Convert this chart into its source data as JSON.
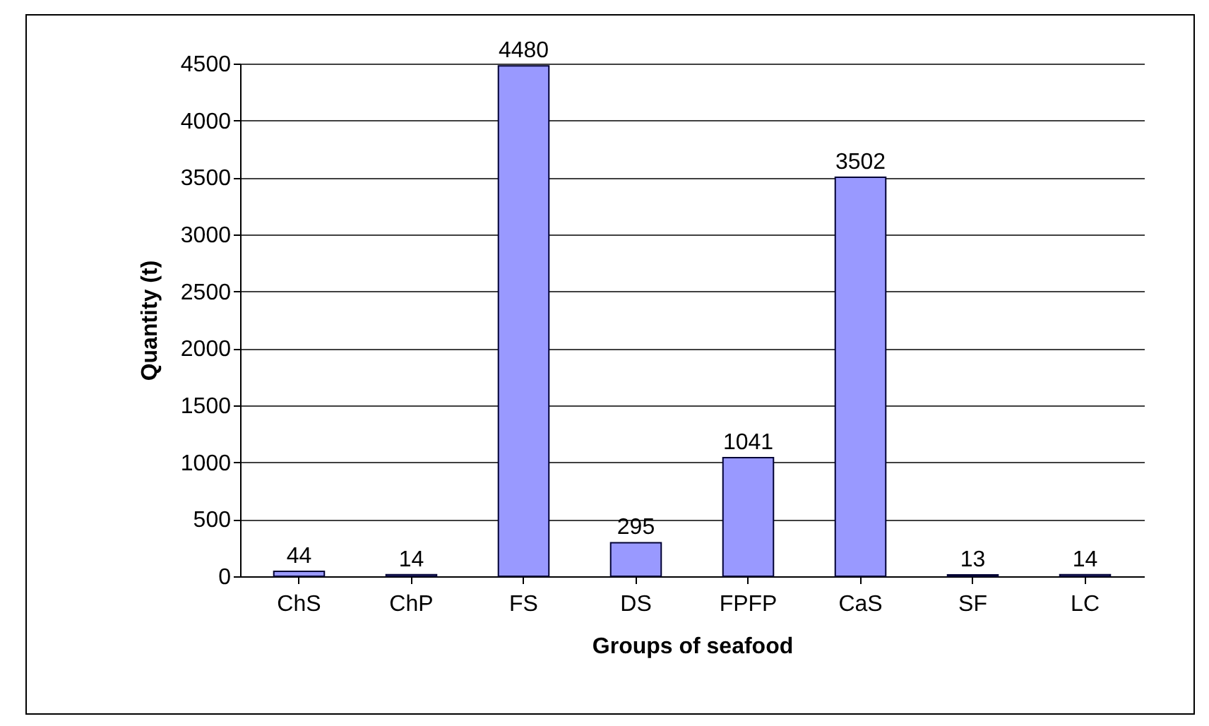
{
  "chart_data": {
    "type": "bar",
    "xlabel": "Groups of seafood",
    "ylabel": "Quantity (t)",
    "categories": [
      "ChS",
      "ChP",
      "FS",
      "DS",
      "FPFP",
      "CaS",
      "SF",
      "LC"
    ],
    "values": [
      44,
      14,
      4480,
      295,
      1041,
      3502,
      13,
      14
    ],
    "color": "#9999ff",
    "ylim": [
      0,
      4500
    ],
    "yticks": [
      0,
      500,
      1000,
      1500,
      2000,
      2500,
      3000,
      3500,
      4000,
      4500
    ],
    "grid": "y",
    "data_labels": true
  }
}
